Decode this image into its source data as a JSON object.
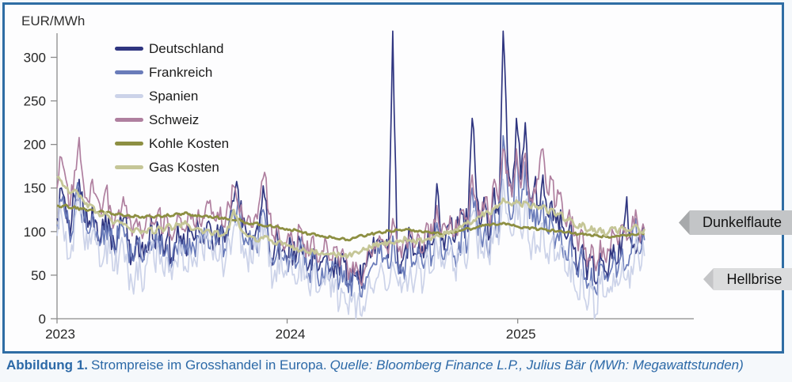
{
  "caption": {
    "label": "Abbildung 1.",
    "title": "Strompreise im Grosshandel in Europa.",
    "source": "Quelle: Bloomberg Finance L.P., Julius Bär (MWh: Megawattstunden)"
  },
  "annotations": [
    {
      "label": "Dunkelflaute",
      "arrow_direction": "left",
      "fill": "#c3c5c7"
    },
    {
      "label": "Hellbrise",
      "arrow_direction": "left",
      "fill": "#dbdcdd"
    }
  ],
  "colors": {
    "frame_and_caption_blue": "#2e6da4",
    "axis_gray": "#8c8c8c"
  },
  "chart_data": {
    "type": "line",
    "title": "",
    "xlabel": "",
    "ylabel": "EUR/MWh",
    "ylim": [
      0,
      335
    ],
    "grid": false,
    "legend_position": "upper-left-inside",
    "x_unit": "weeks starting Jan 2023, weekly estimates read from plot",
    "x_ticks": [
      {
        "label": "2023",
        "week": 0
      },
      {
        "label": "2024",
        "week": 52.1
      },
      {
        "label": "2025",
        "week": 104.3
      }
    ],
    "y_ticks": [
      0,
      50,
      100,
      150,
      200,
      250,
      300
    ],
    "series": [
      {
        "name": "Deutschland",
        "color": "#2f3580",
        "volatility": 24,
        "values": [
          115,
          150,
          125,
          95,
          140,
          160,
          120,
          105,
          130,
          110,
          95,
          120,
          105,
          85,
          100,
          115,
          90,
          75,
          95,
          80,
          85,
          100,
          90,
          105,
          80,
          95,
          70,
          88,
          95,
          82,
          100,
          90,
          105,
          95,
          110,
          98,
          92,
          105,
          88,
          112,
          135,
          148,
          105,
          95,
          88,
          100,
          120,
          140,
          85,
          70,
          90,
          78,
          72,
          85,
          65,
          90,
          70,
          60,
          80,
          55,
          65,
          75,
          58,
          70,
          50,
          65,
          40,
          60,
          55,
          35,
          60,
          70,
          75,
          90,
          85,
          70,
          330,
          78,
          65,
          85,
          95,
          75,
          88,
          70,
          100,
          85,
          155,
          90,
          95,
          110,
          88,
          105,
          120,
          100,
          230,
          140,
          110,
          130,
          95,
          150,
          120,
          330,
          180,
          140,
          230,
          160,
          225,
          140,
          150,
          130,
          165,
          120,
          135,
          110,
          125,
          95,
          105,
          80,
          60,
          85,
          45,
          70,
          40,
          75,
          55,
          62,
          85,
          65,
          95,
          140,
          88,
          75,
          90,
          105
        ]
      },
      {
        "name": "Frankreich",
        "color": "#6a7cba",
        "volatility": 22,
        "values": [
          108,
          135,
          115,
          88,
          130,
          150,
          112,
          98,
          120,
          100,
          88,
          110,
          95,
          78,
          92,
          105,
          82,
          68,
          85,
          72,
          78,
          90,
          82,
          95,
          72,
          85,
          62,
          80,
          88,
          75,
          92,
          82,
          95,
          88,
          100,
          90,
          85,
          95,
          80,
          102,
          125,
          138,
          95,
          88,
          80,
          92,
          100,
          120,
          78,
          62,
          82,
          70,
          65,
          78,
          58,
          82,
          62,
          52,
          72,
          48,
          58,
          68,
          50,
          62,
          42,
          55,
          30,
          50,
          45,
          25,
          48,
          58,
          62,
          75,
          70,
          58,
          95,
          65,
          52,
          70,
          80,
          62,
          75,
          58,
          85,
          72,
          110,
          75,
          80,
          92,
          72,
          88,
          100,
          85,
          150,
          115,
          92,
          108,
          80,
          125,
          100,
          210,
          150,
          115,
          185,
          130,
          180,
          115,
          125,
          108,
          135,
          100,
          112,
          92,
          105,
          78,
          88,
          65,
          48,
          70,
          35,
          58,
          30,
          62,
          45,
          50,
          70,
          55,
          80,
          62,
          75,
          115,
          75,
          90
        ]
      },
      {
        "name": "Spanien",
        "color": "#ccd3e9",
        "volatility": 26,
        "values": [
          95,
          120,
          100,
          70,
          115,
          135,
          95,
          80,
          100,
          85,
          60,
          90,
          75,
          55,
          70,
          85,
          60,
          40,
          65,
          50,
          60,
          75,
          65,
          80,
          55,
          70,
          45,
          65,
          75,
          60,
          80,
          70,
          85,
          75,
          95,
          80,
          70,
          85,
          60,
          90,
          105,
          115,
          85,
          70,
          65,
          80,
          90,
          110,
          60,
          45,
          70,
          55,
          50,
          65,
          40,
          70,
          45,
          35,
          60,
          30,
          40,
          55,
          25,
          45,
          15,
          30,
          5,
          25,
          20,
          3,
          22,
          35,
          40,
          55,
          50,
          35,
          65,
          45,
          30,
          50,
          60,
          42,
          58,
          40,
          70,
          55,
          85,
          60,
          68,
          80,
          58,
          75,
          88,
          70,
          120,
          95,
          75,
          90,
          62,
          105,
          85,
          160,
          120,
          95,
          140,
          100,
          135,
          85,
          100,
          82,
          110,
          75,
          90,
          68,
          85,
          55,
          68,
          40,
          22,
          48,
          10,
          35,
          5,
          40,
          25,
          30,
          52,
          38,
          65,
          45,
          60,
          90,
          55,
          72
        ]
      },
      {
        "name": "Schweiz",
        "color": "#af7f9f",
        "volatility": 15,
        "values": [
          150,
          185,
          160,
          130,
          170,
          208,
          155,
          135,
          160,
          140,
          120,
          148,
          130,
          110,
          125,
          140,
          115,
          95,
          115,
          100,
          105,
          120,
          108,
          125,
          98,
          115,
          90,
          108,
          115,
          100,
          120,
          108,
          125,
          115,
          135,
          120,
          112,
          128,
          105,
          130,
          152,
          130,
          118,
          112,
          105,
          120,
          140,
          168,
          120,
          95,
          108,
          88,
          88,
          100,
          80,
          105,
          85,
          72,
          95,
          65,
          78,
          88,
          68,
          82,
          60,
          72,
          45,
          65,
          58,
          38,
          62,
          75,
          80,
          95,
          88,
          75,
          115,
          85,
          70,
          90,
          100,
          82,
          95,
          78,
          108,
          92,
          130,
          98,
          105,
          118,
          95,
          112,
          125,
          108,
          165,
          135,
          115,
          140,
          105,
          160,
          135,
          195,
          170,
          140,
          195,
          150,
          190,
          135,
          150,
          160,
          195,
          145,
          160,
          130,
          145,
          112,
          125,
          95,
          78,
          100,
          60,
          85,
          55,
          90,
          70,
          78,
          98,
          85,
          108,
          90,
          100,
          125,
          88,
          102
        ]
      },
      {
        "name": "Kohle Kosten",
        "color": "#8d8f42",
        "volatility": 1.5,
        "values": [
          130,
          128,
          131,
          127,
          129,
          125,
          127,
          124,
          125,
          122,
          124,
          121,
          122,
          119,
          121,
          118,
          119,
          117,
          118,
          116,
          117,
          118,
          116,
          119,
          117,
          120,
          118,
          121,
          119,
          122,
          120,
          118,
          119,
          117,
          118,
          116,
          117,
          115,
          116,
          114,
          113,
          114,
          112,
          110,
          109,
          110,
          108,
          106,
          107,
          105,
          106,
          104,
          103,
          101,
          102,
          100,
          99,
          97,
          98,
          96,
          95,
          93,
          94,
          92,
          91,
          92,
          90,
          93,
          94,
          96,
          95,
          97,
          98,
          100,
          99,
          101,
          100,
          102,
          101,
          103,
          102,
          100,
          101,
          99,
          100,
          98,
          99,
          97,
          98,
          100,
          99,
          101,
          102,
          104,
          103,
          105,
          106,
          108,
          107,
          109,
          108,
          110,
          109,
          107,
          106,
          104,
          105,
          103,
          104,
          102,
          103,
          101,
          102,
          100,
          101,
          99,
          100,
          98,
          97,
          98,
          96,
          95,
          96,
          94,
          95,
          93,
          94,
          95,
          96,
          95,
          97,
          96,
          98,
          97
        ]
      },
      {
        "name": "Gas Kosten",
        "color": "#c5c697",
        "volatility": 3.5,
        "values": [
          162,
          158,
          150,
          144,
          148,
          140,
          135,
          128,
          130,
          122,
          118,
          122,
          115,
          110,
          112,
          108,
          105,
          100,
          104,
          98,
          100,
          104,
          98,
          106,
          100,
          108,
          102,
          110,
          105,
          112,
          106,
          102,
          104,
          98,
          102,
          96,
          100,
          95,
          98,
          105,
          125,
          112,
          100,
          95,
          94,
          89,
          92,
          95,
          90,
          86,
          88,
          85,
          84,
          82,
          80,
          78,
          79,
          76,
          78,
          75,
          76,
          74,
          75,
          73,
          74,
          72,
          73,
          75,
          76,
          78,
          80,
          82,
          84,
          86,
          85,
          88,
          87,
          90,
          89,
          92,
          90,
          88,
          91,
          89,
          92,
          94,
          96,
          95,
          98,
          100,
          102,
          105,
          108,
          112,
          110,
          115,
          118,
          122,
          120,
          126,
          130,
          138,
          134,
          130,
          136,
          130,
          134,
          128,
          132,
          126,
          130,
          122,
          126,
          118,
          122,
          112,
          116,
          108,
          104,
          110,
          100,
          106,
          98,
          104,
          96,
          100,
          104,
          98,
          106,
          100,
          102,
          108,
          98,
          103
        ]
      }
    ]
  }
}
